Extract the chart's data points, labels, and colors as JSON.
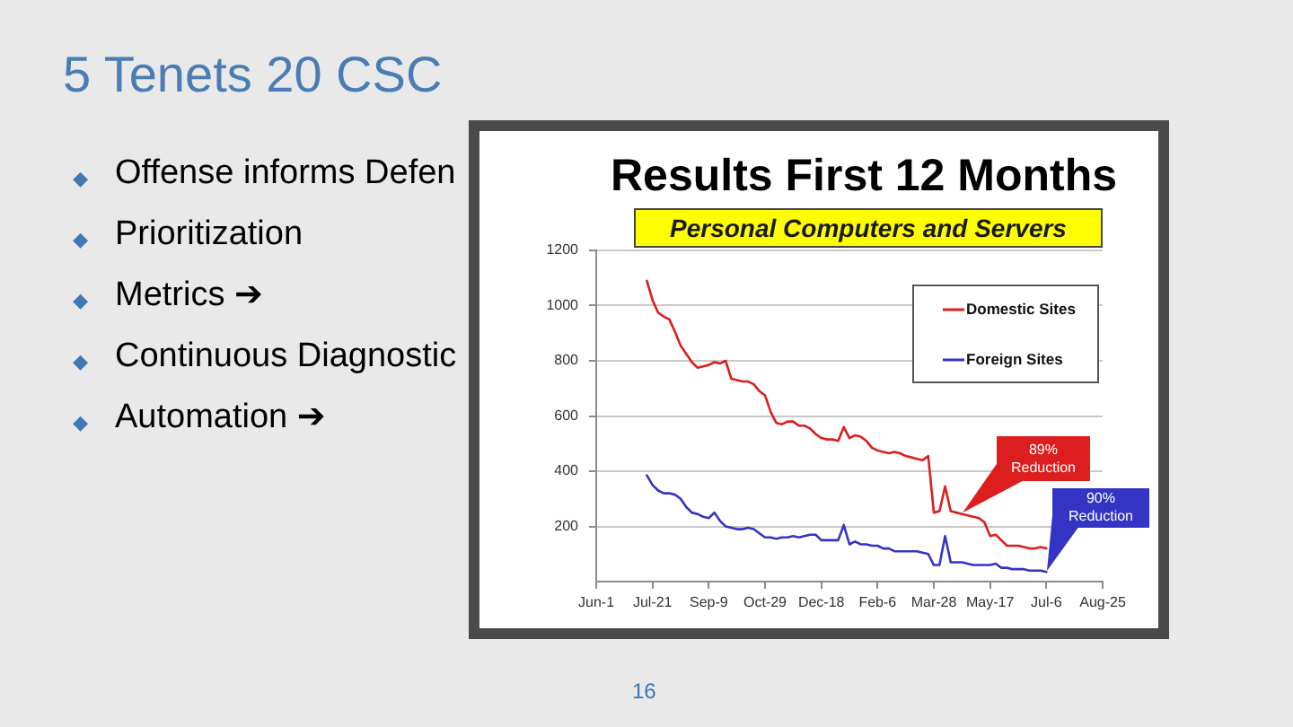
{
  "chart_data": {
    "type": "line",
    "title": "Results First 12 Months",
    "subtitle": "Personal Computers and Servers",
    "annotations": [
      "5 Tenets 20 CSC",
      "Offense informs Defen",
      "Prioritization",
      "Metrics ➔",
      "Continuous Diagnostic",
      "Automation ➔",
      "89% Reduction",
      "90% Reduction",
      "16"
    ],
    "categories": [
      "Jun-1",
      null,
      null,
      null,
      null,
      null,
      null,
      null,
      null,
      null,
      "Jul-21",
      null,
      null,
      null,
      null,
      null,
      null,
      null,
      null,
      null,
      "Sep-9",
      null,
      null,
      null,
      null,
      null,
      null,
      null,
      null,
      null,
      "Oct-29",
      null,
      null,
      null,
      null,
      null,
      null,
      null,
      null,
      null,
      "Dec-18",
      null,
      null,
      null,
      null,
      null,
      null,
      null,
      null,
      null,
      "Feb-6",
      null,
      null,
      null,
      null,
      null,
      null,
      null,
      null,
      null,
      "Mar-28",
      null,
      null,
      null,
      null,
      null,
      null,
      null,
      null,
      null,
      "May-17",
      null,
      null,
      null,
      null,
      null,
      null,
      null,
      null,
      null,
      "Jul-6",
      null,
      null,
      null,
      null,
      null,
      null,
      null,
      null,
      null,
      "Aug-25"
    ],
    "series": [
      {
        "name": "Domestic Sites",
        "color": "#dc1e1e",
        "values": [
          null,
          null,
          null,
          null,
          null,
          null,
          null,
          null,
          null,
          1090,
          1020,
          975,
          960,
          950,
          905,
          855,
          825,
          795,
          775,
          780,
          785,
          795,
          790,
          800,
          735,
          730,
          725,
          725,
          715,
          690,
          675,
          615,
          575,
          570,
          580,
          580,
          565,
          565,
          555,
          535,
          520,
          515,
          515,
          510,
          560,
          520,
          530,
          525,
          510,
          485,
          475,
          470,
          465,
          470,
          465,
          455,
          450,
          445,
          440,
          455,
          250,
          255,
          345,
          255,
          250,
          245,
          240,
          235,
          230,
          215,
          165,
          170,
          150,
          130,
          130,
          130,
          125,
          120,
          120,
          125,
          120,
          null,
          null,
          null,
          null,
          null,
          null,
          null,
          null,
          null,
          null
        ]
      },
      {
        "name": "Foreign Sites",
        "color": "#3434c4",
        "values": [
          null,
          null,
          null,
          null,
          null,
          null,
          null,
          null,
          null,
          385,
          350,
          330,
          320,
          320,
          315,
          300,
          270,
          250,
          245,
          235,
          230,
          250,
          220,
          200,
          195,
          190,
          190,
          195,
          190,
          175,
          160,
          160,
          155,
          160,
          160,
          165,
          160,
          165,
          170,
          170,
          150,
          150,
          150,
          150,
          205,
          135,
          145,
          135,
          135,
          130,
          130,
          120,
          120,
          110,
          110,
          110,
          110,
          110,
          105,
          100,
          60,
          60,
          165,
          70,
          70,
          70,
          65,
          60,
          60,
          60,
          60,
          65,
          50,
          50,
          45,
          45,
          45,
          40,
          40,
          40,
          35,
          null,
          null,
          null,
          null,
          null,
          null,
          null,
          null,
          null,
          null
        ]
      }
    ],
    "ylim": [
      0,
      1200
    ],
    "yticks": [
      200,
      400,
      600,
      800,
      1000,
      1200
    ],
    "grid": "y",
    "legend": "top right"
  }
}
